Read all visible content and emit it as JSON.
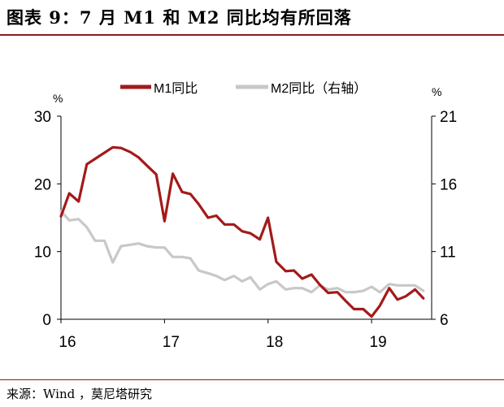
{
  "figure": {
    "title": "图表 9：7 月 M1 和 M2 同比均有所回落",
    "source": "来源：Wind ，莫尼塔研究"
  },
  "chart_data": {
    "type": "line",
    "x_ticks": [
      "16",
      "17",
      "18",
      "19"
    ],
    "x_range": [
      2016.0,
      2019.58
    ],
    "left_axis": {
      "unit": "%",
      "ticks": [
        "0",
        "10",
        "20",
        "30"
      ],
      "range": [
        0,
        30
      ]
    },
    "right_axis": {
      "unit": "%",
      "ticks": [
        "6",
        "11",
        "16",
        "21"
      ],
      "range": [
        6,
        21
      ]
    },
    "legend": {
      "position": "top"
    },
    "series": [
      {
        "name": "M1同比",
        "axis": "left",
        "color": "#a31a1a",
        "values": [
          15.2,
          18.6,
          17.4,
          22.9,
          23.7,
          24.6,
          25.4,
          25.3,
          24.7,
          23.9,
          22.7,
          21.4,
          14.5,
          21.5,
          18.8,
          18.5,
          17.0,
          15.0,
          15.3,
          14.0,
          14.0,
          13.0,
          12.7,
          11.8,
          15.0,
          8.5,
          7.1,
          7.2,
          6.0,
          6.6,
          5.1,
          3.9,
          4.0,
          2.7,
          1.5,
          1.5,
          0.4,
          2.0,
          4.6,
          2.9,
          3.4,
          4.4,
          3.1
        ],
        "x": [
          2016.0,
          2016.08,
          2016.17,
          2016.25,
          2016.33,
          2016.42,
          2016.5,
          2016.58,
          2016.67,
          2016.75,
          2016.83,
          2016.92,
          2017.0,
          2017.08,
          2017.17,
          2017.25,
          2017.33,
          2017.42,
          2017.5,
          2017.58,
          2017.67,
          2017.75,
          2017.83,
          2017.92,
          2018.0,
          2018.08,
          2018.17,
          2018.25,
          2018.33,
          2018.42,
          2018.5,
          2018.58,
          2018.67,
          2018.75,
          2018.83,
          2018.92,
          2019.0,
          2019.08,
          2019.17,
          2019.25,
          2019.33,
          2019.42,
          2019.5
        ]
      },
      {
        "name": "M2同比（右轴）",
        "axis": "right",
        "color": "#c8c8c8",
        "values": [
          14.0,
          13.3,
          13.4,
          12.8,
          11.8,
          11.8,
          10.2,
          11.4,
          11.5,
          11.6,
          11.4,
          11.3,
          11.3,
          10.6,
          10.6,
          10.5,
          9.6,
          9.4,
          9.2,
          8.9,
          9.2,
          8.8,
          9.1,
          8.2,
          8.6,
          8.8,
          8.2,
          8.3,
          8.3,
          8.0,
          8.5,
          8.2,
          8.3,
          8.0,
          8.0,
          8.1,
          8.4,
          8.0,
          8.6,
          8.5,
          8.5,
          8.5,
          8.1
        ],
        "x": [
          2016.0,
          2016.08,
          2016.17,
          2016.25,
          2016.33,
          2016.42,
          2016.5,
          2016.58,
          2016.67,
          2016.75,
          2016.83,
          2016.92,
          2017.0,
          2017.08,
          2017.17,
          2017.25,
          2017.33,
          2017.42,
          2017.5,
          2017.58,
          2017.67,
          2017.75,
          2017.83,
          2017.92,
          2018.0,
          2018.08,
          2018.17,
          2018.25,
          2018.33,
          2018.42,
          2018.5,
          2018.58,
          2018.67,
          2018.75,
          2018.83,
          2018.92,
          2019.0,
          2019.08,
          2019.17,
          2019.25,
          2019.33,
          2019.42,
          2019.5
        ]
      }
    ]
  }
}
